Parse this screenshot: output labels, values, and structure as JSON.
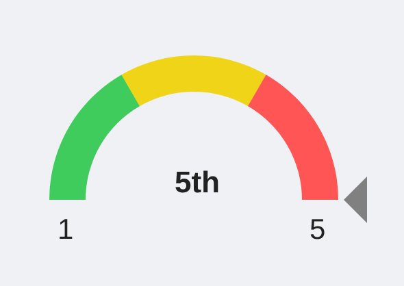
{
  "gauge": {
    "value": 5,
    "value_label": "5th",
    "min_label": "1",
    "max_label": "5",
    "min": 1,
    "max": 5,
    "bands": [
      {
        "name": "low",
        "color": "#40cc5c"
      },
      {
        "name": "mid",
        "color": "#f0d418"
      },
      {
        "name": "high",
        "color": "#ff5555"
      }
    ],
    "pointer_color": "#808080",
    "background_color": "#f0f1f5"
  }
}
